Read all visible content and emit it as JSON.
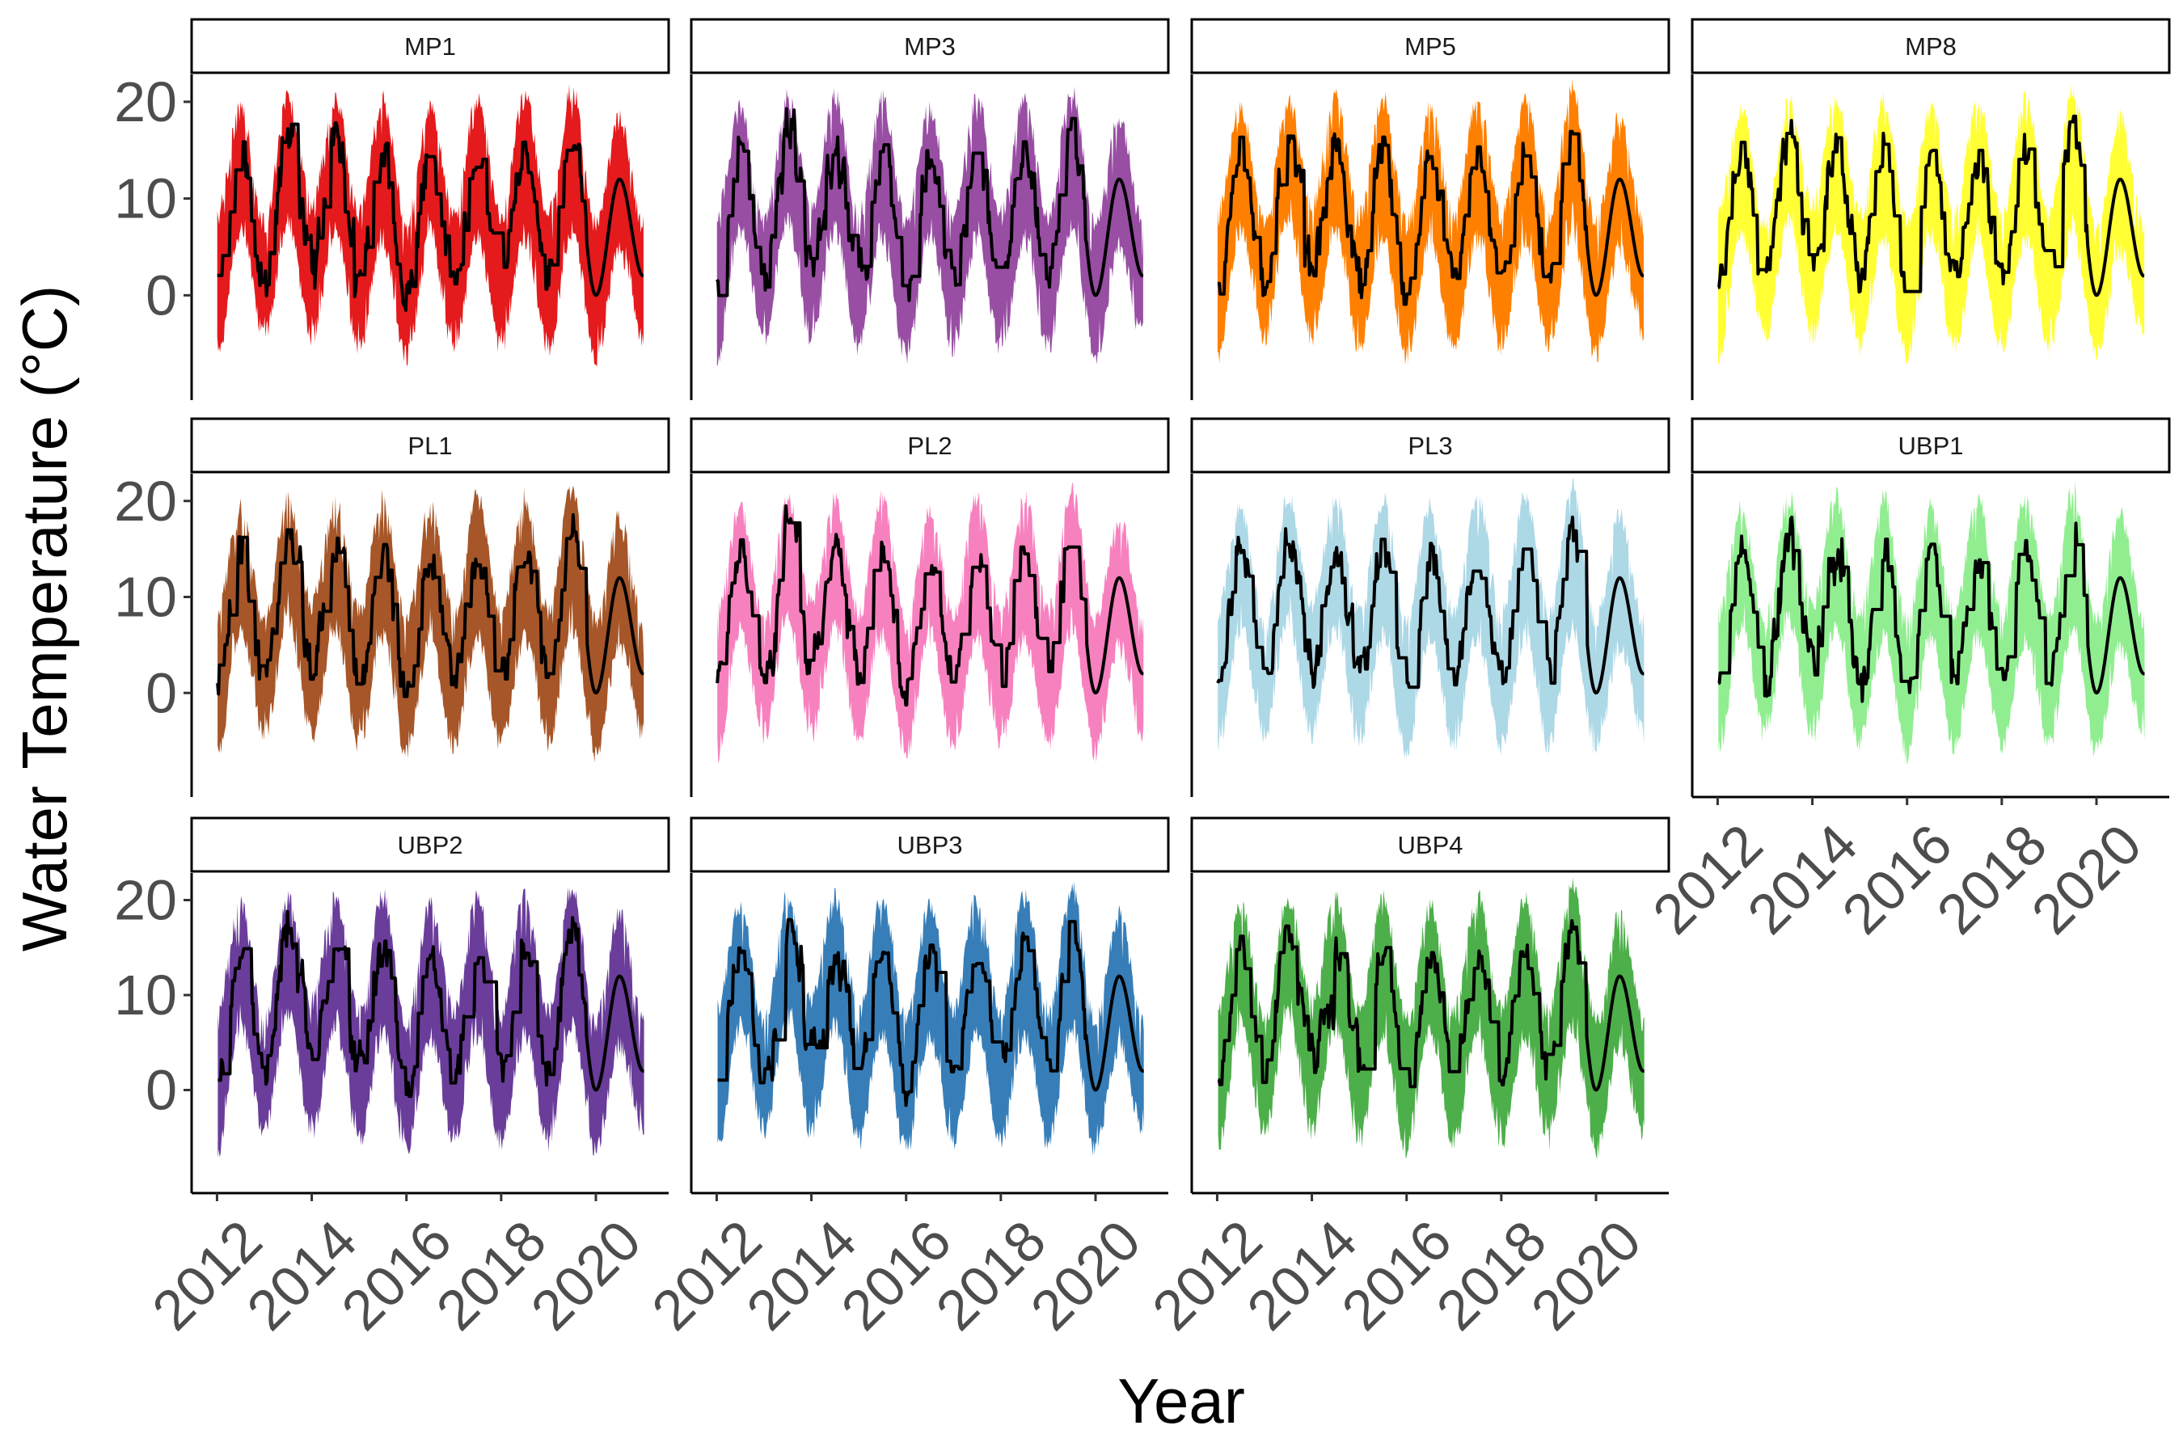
{
  "chart_data": {
    "type": "area",
    "ylabel": "Water Temperature (°C)",
    "xlabel": "Year",
    "ylim": [
      -10,
      22
    ],
    "xlim": [
      2011.6,
      2021.4
    ],
    "y_ticks": [
      "0",
      "10",
      "20"
    ],
    "y_tick_values": [
      0,
      10,
      20
    ],
    "x_ticks": [
      "2012",
      "2014",
      "2016",
      "2018",
      "2020"
    ],
    "x_tick_values": [
      2012,
      2014,
      2016,
      2018,
      2020
    ],
    "grid": false,
    "legend": "none",
    "line_color": "#000000",
    "panels": [
      {
        "name": "MP1",
        "color": "#E41A1C"
      },
      {
        "name": "MP3",
        "color": "#984EA3"
      },
      {
        "name": "MP5",
        "color": "#FF7F00"
      },
      {
        "name": "MP8",
        "color": "#FFFF33"
      },
      {
        "name": "PL1",
        "color": "#A65628"
      },
      {
        "name": "PL2",
        "color": "#F781BF"
      },
      {
        "name": "PL3",
        "color": "#ADD8E6"
      },
      {
        "name": "UBP1",
        "color": "#90EE90"
      },
      {
        "name": "UBP2",
        "color": "#6A3D9A"
      },
      {
        "name": "UBP3",
        "color": "#377EB8"
      },
      {
        "name": "UBP4",
        "color": "#4DAF4A"
      }
    ],
    "series_summary": {
      "description_x": [
        2012.0,
        2012.5,
        2013.0,
        2013.5,
        2014.0,
        2014.5,
        2015.0,
        2015.5,
        2016.0,
        2016.5,
        2017.0,
        2017.5,
        2018.0,
        2018.5,
        2019.0,
        2019.5,
        2020.0,
        2020.5,
        2021.0
      ],
      "median_line": [
        1,
        15,
        1,
        17,
        3,
        15,
        2,
        15,
        0,
        14,
        2,
        14,
        2,
        15,
        2,
        17,
        0,
        12,
        2
      ],
      "ribbon_low": [
        -5,
        8,
        -3,
        9,
        -3,
        8,
        -4,
        7,
        -5,
        7,
        -4,
        7,
        -4,
        7,
        -4,
        8,
        -5,
        6,
        -3
      ],
      "ribbon_high": [
        7,
        18,
        6,
        19,
        8,
        19,
        7,
        19,
        6,
        18,
        7,
        19,
        7,
        19,
        7,
        20,
        6,
        17,
        6
      ]
    }
  }
}
